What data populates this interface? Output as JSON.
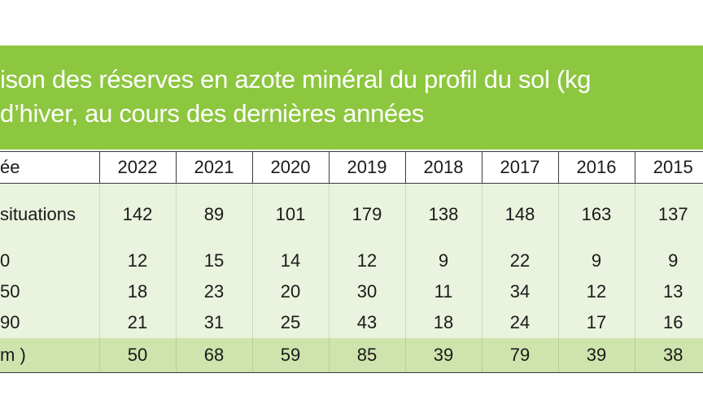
{
  "title": {
    "line1": "ison des réserves en azote minéral du profil du sol (kg",
    "line2": "d’hiver, au cours des dernières années"
  },
  "table": {
    "header_label": "ée",
    "years": [
      "2022",
      "2021",
      "2020",
      "2019",
      "2018",
      "2017",
      "2016",
      "2015"
    ],
    "rows": [
      {
        "label": "situations",
        "values": [
          "142",
          "89",
          "101",
          "179",
          "138",
          "148",
          "163",
          "137"
        ]
      },
      {
        "label": "0",
        "values": [
          "12",
          "15",
          "14",
          "12",
          "9",
          "22",
          "9",
          "9"
        ]
      },
      {
        "label": "50",
        "values": [
          "18",
          "23",
          "20",
          "30",
          "11",
          "34",
          "12",
          "13"
        ]
      },
      {
        "label": "90",
        "values": [
          "21",
          "31",
          "25",
          "43",
          "18",
          "24",
          "17",
          "16"
        ]
      }
    ],
    "total": {
      "label": "m )",
      "values": [
        "50",
        "68",
        "59",
        "85",
        "39",
        "79",
        "39",
        "38"
      ]
    }
  },
  "colors": {
    "title_bg": "#8dc63f",
    "row_bg": "#eaf3dd",
    "total_bg": "#cfe3ad"
  }
}
